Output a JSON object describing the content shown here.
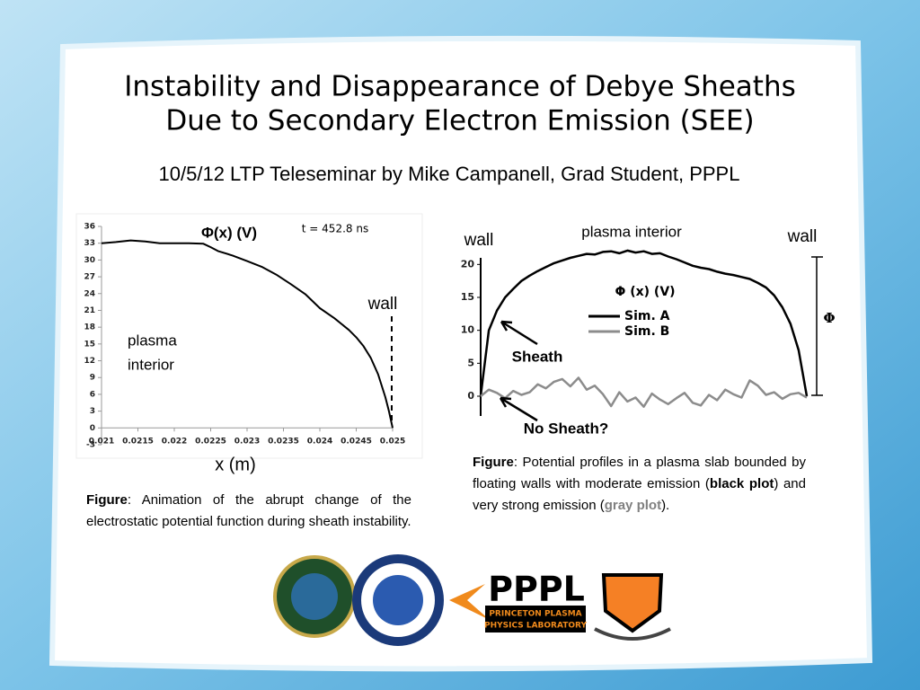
{
  "slide": {
    "title_lines": [
      "Instability and Disappearance of Debye Sheaths",
      "Due to Secondary Electron Emission (SEE)"
    ],
    "subtitle": "10/5/12 LTP Teleseminar by  Mike Campanell, Grad Student, PPPL",
    "caption_left": [
      {
        "text": "Figure",
        "bold": true
      },
      {
        "text": ": Animation of the abrupt change of the electrostatic potential function during sheath instability."
      }
    ],
    "caption_right": [
      {
        "text": "Figure",
        "bold": true
      },
      {
        "text": ": Potential profiles in a plasma slab bounded by floating walls with moderate emission ("
      },
      {
        "text": "black plot",
        "bold": true
      },
      {
        "text": ") and very strong emission ("
      },
      {
        "text": "gray plot",
        "bold": true,
        "color": "#808080"
      },
      {
        "text": ")."
      }
    ],
    "logo_text": [
      "PPPL",
      "PRINCETON PLASMA",
      "PHYSICS LABORATORY"
    ]
  },
  "chart_data": [
    {
      "type": "line",
      "annotations": [
        "Φ(x)   (V)",
        "t = 452.8 ns",
        "wall",
        "plasma",
        "interior"
      ],
      "x_label": "x (m)",
      "x": [
        0.021,
        0.0212,
        0.0214,
        0.0216,
        0.0218,
        0.022,
        0.0222,
        0.0224,
        0.0225,
        0.0226,
        0.0228,
        0.023,
        0.0232,
        0.0234,
        0.0236,
        0.0238,
        0.024,
        0.0242,
        0.0244,
        0.0245,
        0.0246,
        0.0247,
        0.0248,
        0.0249,
        0.02495,
        0.025
      ],
      "series": [
        {
          "color": "#000000",
          "values": [
            33,
            33.2,
            33.5,
            33.3,
            33,
            33,
            33,
            32.9,
            32.3,
            31.6,
            30.8,
            29.8,
            28.8,
            27.4,
            25.7,
            23.9,
            21.4,
            19.6,
            17.5,
            16.2,
            14.6,
            12.5,
            9.6,
            5.5,
            3,
            0
          ]
        }
      ],
      "xlim": [
        0.021,
        0.025
      ],
      "xticks": [
        0.021,
        0.0215,
        0.022,
        0.0225,
        0.023,
        0.0235,
        0.024,
        0.0245,
        0.025
      ],
      "ylim": [
        -3,
        36
      ],
      "yticks": [
        -3,
        0,
        3,
        6,
        9,
        12,
        15,
        18,
        21,
        24,
        27,
        30,
        33,
        36
      ]
    },
    {
      "type": "line",
      "annotations": [
        "wall",
        "plasma interior",
        "wall",
        "Φ (x)  (V)",
        "Sheath",
        "No Sheath?",
        "Φ"
      ],
      "series": [
        {
          "name": "Sim. A",
          "color": "#000000",
          "values": [
            0,
            10,
            13,
            15,
            16.3,
            17.5,
            18.3,
            19,
            19.6,
            20.2,
            20.6,
            21,
            21.3,
            21.6,
            21.5,
            21.9,
            22,
            21.7,
            22.1,
            21.8,
            22,
            21.6,
            21.7,
            21.2,
            20.8,
            20.3,
            19.8,
            19.5,
            19.3,
            18.9,
            18.6,
            18.4,
            18.1,
            17.8,
            17.2,
            16.5,
            15.3,
            13.5,
            11,
            7,
            0
          ]
        },
        {
          "name": "Sim. B",
          "color": "#8c8c8c",
          "values": [
            0,
            1,
            0.5,
            -0.3,
            0.8,
            0.2,
            0.6,
            1.8,
            1.2,
            2.2,
            2.6,
            1.5,
            2.8,
            1,
            1.6,
            0.3,
            -1.5,
            0.6,
            -0.8,
            -0.2,
            -1.6,
            0.4,
            -0.5,
            -1.2,
            -0.3,
            0.5,
            -1,
            -1.4,
            0.2,
            -0.6,
            1,
            0.3,
            -0.2,
            2.4,
            1.6,
            0.2,
            0.6,
            -0.4,
            0.3,
            0.5,
            -0.2
          ]
        }
      ],
      "ylim": [
        -3,
        21
      ],
      "yticks": [
        0,
        5,
        10,
        15,
        20
      ]
    }
  ]
}
